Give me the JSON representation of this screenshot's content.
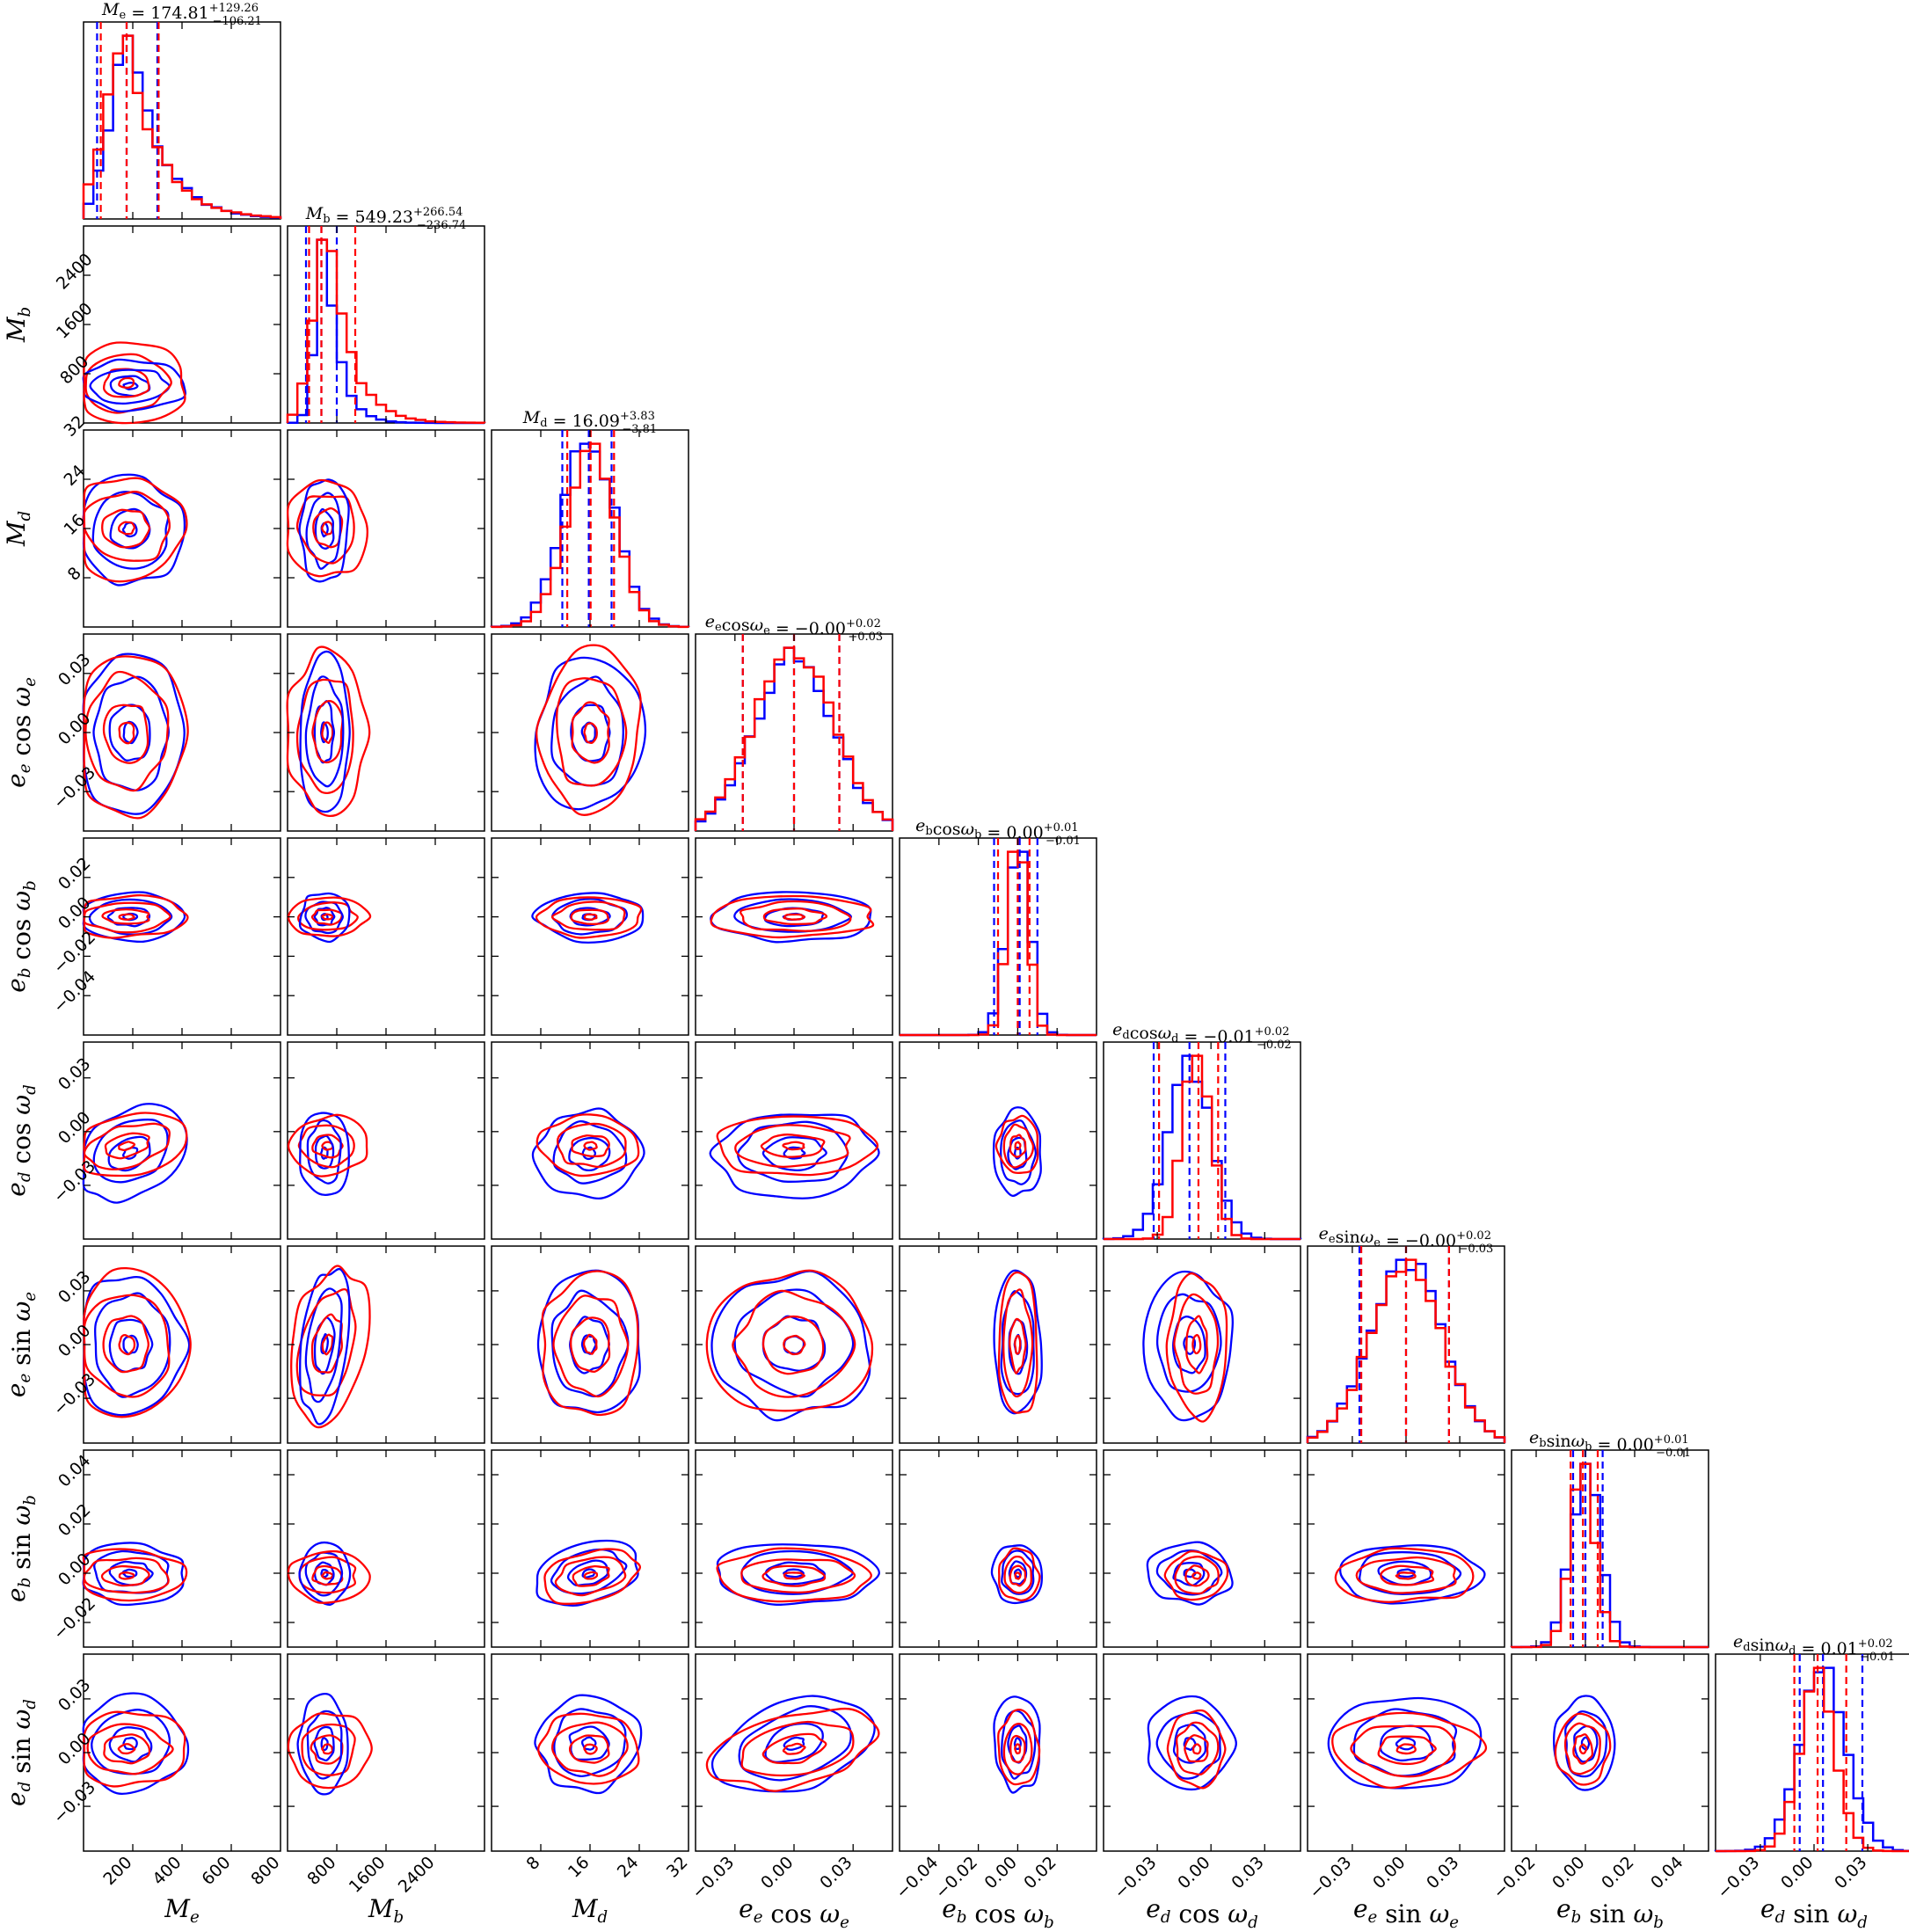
{
  "chart_data": {
    "type": "corner",
    "series": [
      {
        "name": "",
        "color": "#0000ff"
      },
      {
        "name": "",
        "color": "#ff0000"
      }
    ],
    "params": [
      {
        "id": "Me",
        "label": "M_e",
        "range": [
          0,
          800
        ],
        "ticks": [
          200,
          400,
          600,
          800
        ],
        "tickLabels": [
          "200",
          "400",
          "600",
          "800"
        ],
        "title": {
          "lhs": "M_e",
          "value": "174.81",
          "plus": "+129.26",
          "minus": "−106.21"
        },
        "mean": {
          "blue": 190,
          "red": 175
        },
        "sd": {
          "blue": 110,
          "red": 120
        },
        "quant": {
          "blue": [
            55,
            175,
            300
          ],
          "red": [
            70,
            175,
            305
          ]
        }
      },
      {
        "id": "Mb",
        "label": "M_b",
        "range": [
          0,
          3200
        ],
        "ticks": [
          800,
          1600,
          2400
        ],
        "tickLabels": [
          "800",
          "1600",
          "2400"
        ],
        "title": {
          "lhs": "M_b",
          "value": "549.23",
          "plus": "+266.54",
          "minus": "−236.74"
        },
        "mean": {
          "blue": 600,
          "red": 650
        },
        "sd": {
          "blue": 200,
          "red": 320
        },
        "quant": {
          "blue": [
            300,
            550,
            800
          ],
          "red": [
            350,
            550,
            1100
          ]
        }
      },
      {
        "id": "Md",
        "label": "M_d",
        "range": [
          0,
          32
        ],
        "ticks": [
          8,
          16,
          24,
          32
        ],
        "tickLabels": [
          "8",
          "16",
          "24",
          "32"
        ],
        "title": {
          "lhs": "M_d",
          "value": "16.09",
          "plus": "+3.83",
          "minus": "−3.81"
        },
        "mean": {
          "blue": 15.8,
          "red": 16.1
        },
        "sd": {
          "blue": 4.2,
          "red": 4.0
        },
        "quant": {
          "blue": [
            11.5,
            15.8,
            19.5
          ],
          "red": [
            12.3,
            16.1,
            19.9
          ]
        }
      },
      {
        "id": "ecoswe",
        "label": "e_e cos ω_e",
        "range": [
          -0.05,
          0.05
        ],
        "ticks": [
          -0.03,
          0,
          0.03
        ],
        "tickLabels": [
          "−0.03",
          "0.00",
          "0.03"
        ],
        "title": {
          "lhs": "e_e cos ω_e",
          "value": "−0.00",
          "plus": "+0.02",
          "minus": "−0.03"
        },
        "mean": {
          "blue": 0,
          "red": 0
        },
        "sd": {
          "blue": 0.02,
          "red": 0.02
        },
        "quant": {
          "blue": [
            -0.026,
            0,
            0.023
          ],
          "red": [
            -0.026,
            0,
            0.023
          ]
        }
      },
      {
        "id": "ecoswb",
        "label": "e_b cos ω_b",
        "range": [
          -0.06,
          0.04
        ],
        "ticks": [
          -0.04,
          -0.02,
          0,
          0.02
        ],
        "tickLabels": [
          "−0.04",
          "−0.02",
          "0.00",
          "0.02"
        ],
        "title": {
          "lhs": "e_b cos ω_b",
          "value": "0.00",
          "plus": "+0.01",
          "minus": "−0.01"
        },
        "mean": {
          "blue": 0,
          "red": 0
        },
        "sd": {
          "blue": 0.006,
          "red": 0.005
        },
        "quant": {
          "blue": [
            -0.012,
            0.001,
            0.01
          ],
          "red": [
            -0.01,
            0,
            0.006
          ]
        }
      },
      {
        "id": "ecoswd",
        "label": "e_d cos ω_d",
        "range": [
          -0.06,
          0.05
        ],
        "ticks": [
          -0.03,
          0,
          0.03
        ],
        "tickLabels": [
          "−0.03",
          "0.00",
          "0.03"
        ],
        "title": {
          "lhs": "e_d cos ω_d",
          "value": "−0.01",
          "plus": "+0.02",
          "minus": "−0.02"
        },
        "mean": {
          "blue": -0.012,
          "red": -0.008
        },
        "sd": {
          "blue": 0.012,
          "red": 0.008
        },
        "quant": {
          "blue": [
            -0.032,
            -0.012,
            0.008
          ],
          "red": [
            -0.029,
            -0.007,
            0.004
          ]
        }
      },
      {
        "id": "esinwe",
        "label": "e_e sin ω_e",
        "range": [
          -0.055,
          0.055
        ],
        "ticks": [
          -0.03,
          0,
          0.03
        ],
        "tickLabels": [
          "−0.03",
          "0.00",
          "0.03"
        ],
        "title": {
          "lhs": "e_e sin ω_e",
          "value": "−0.00",
          "plus": "+0.02",
          "minus": "−0.03"
        },
        "mean": {
          "blue": 0,
          "red": 0
        },
        "sd": {
          "blue": 0.02,
          "red": 0.02
        },
        "quant": {
          "blue": [
            -0.026,
            0,
            0.024
          ],
          "red": [
            -0.025,
            0,
            0.024
          ]
        }
      },
      {
        "id": "esinwb",
        "label": "e_b sin ω_b",
        "range": [
          -0.03,
          0.05
        ],
        "ticks": [
          -0.02,
          0,
          0.02,
          0.04
        ],
        "tickLabels": [
          "−0.02",
          "0.00",
          "0.02",
          "0.04"
        ],
        "title": {
          "lhs": "e_b sin ω_b",
          "value": "0.00",
          "plus": "+0.01",
          "minus": "−0.01"
        },
        "mean": {
          "blue": 0,
          "red": -0.001
        },
        "sd": {
          "blue": 0.006,
          "red": 0.005
        },
        "quant": {
          "blue": [
            -0.005,
            0,
            0.007
          ],
          "red": [
            -0.006,
            -0.001,
            0.005
          ]
        }
      },
      {
        "id": "esinwd",
        "label": "e_d sin ω_d",
        "range": [
          -0.055,
          0.055
        ],
        "ticks": [
          -0.03,
          0,
          0.03
        ],
        "tickLabels": [
          "−0.03",
          "0.00",
          "0.03"
        ],
        "title": {
          "lhs": "e_d sin ω_d",
          "value": "0.01",
          "plus": "+0.02",
          "minus": "−0.01"
        },
        "mean": {
          "blue": 0.005,
          "red": 0.002
        },
        "sd": {
          "blue": 0.013,
          "red": 0.01
        },
        "quant": {
          "blue": [
            -0.008,
            0.005,
            0.027
          ],
          "red": [
            -0.011,
            0.002,
            0.018
          ]
        }
      }
    ]
  }
}
